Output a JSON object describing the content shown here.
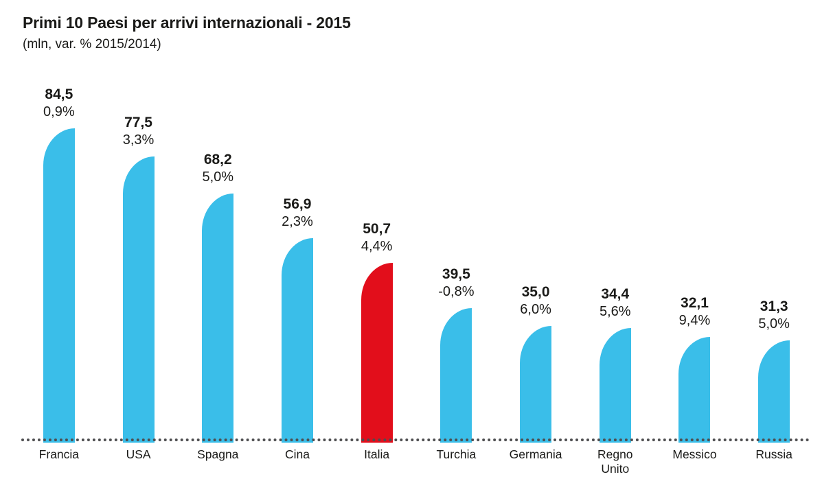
{
  "chart_data": {
    "type": "bar",
    "title": "Primi 10 Paesi per arrivi internazionali - 2015",
    "subtitle": "(mln, var. % 2015/2014)",
    "unit": "mln arrivi internazionali",
    "categories": [
      "Francia",
      "USA",
      "Spagna",
      "Cina",
      "Italia",
      "Turchia",
      "Germania",
      "Regno Unito",
      "Messico",
      "Russia"
    ],
    "series": [
      {
        "name": "Arrivi internazionali 2015 (mln)",
        "values": [
          84.5,
          77.5,
          68.2,
          56.9,
          50.7,
          39.5,
          35.0,
          34.4,
          32.1,
          31.3
        ]
      },
      {
        "name": "Variazione % 2015/2014",
        "values": [
          0.9,
          3.3,
          5.0,
          2.3,
          4.4,
          -0.8,
          6.0,
          5.6,
          9.4,
          5.0
        ]
      }
    ],
    "value_labels": [
      "84,5",
      "77,5",
      "68,2",
      "56,9",
      "50,7",
      "39,5",
      "35,0",
      "34,4",
      "32,1",
      "31,3"
    ],
    "variation_labels": [
      "0,9%",
      "3,3%",
      "5,0%",
      "2,3%",
      "4,4%",
      "-0,8%",
      "6,0%",
      "5,6%",
      "9,4%",
      "5,0%"
    ],
    "highlight_category": "Italia",
    "xlabel": "",
    "ylabel": "",
    "grid": "off",
    "legend": "none",
    "axis_style": "dotted baseline only",
    "colors": {
      "bar": "#3ABEE9",
      "highlight": "#E20E1B",
      "axis_dots": "#4D4D4F",
      "text": "#1A1A18"
    }
  }
}
